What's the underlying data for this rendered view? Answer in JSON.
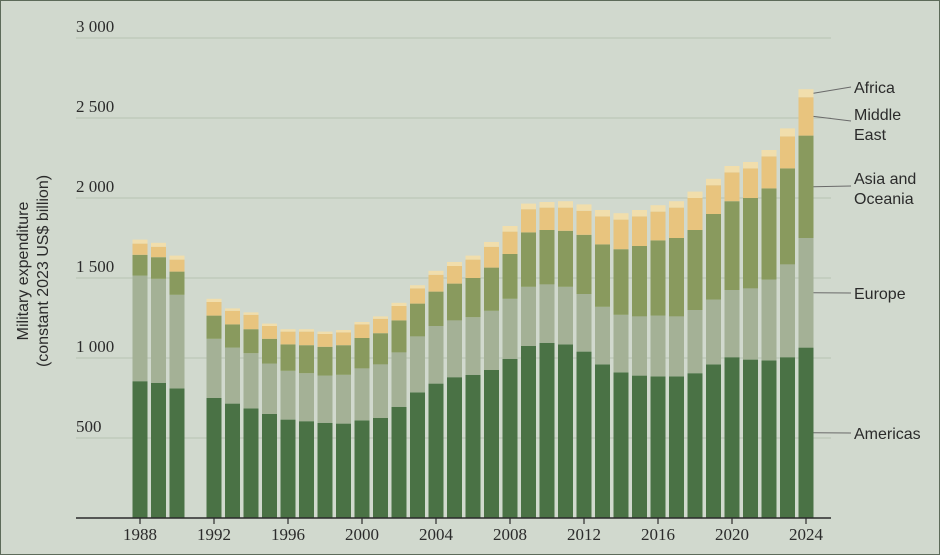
{
  "chart_data": {
    "type": "bar",
    "stacked": true,
    "title": "",
    "ylabel_line1": "Military expenditure",
    "ylabel_line2": "(constant 2023 US$ billion)",
    "ylim": [
      0,
      3000
    ],
    "y_ticks": [
      {
        "value": 500,
        "label": "500"
      },
      {
        "value": 1000,
        "label": "1 000"
      },
      {
        "value": 1500,
        "label": "1 500"
      },
      {
        "value": 2000,
        "label": "2 000"
      },
      {
        "value": 2500,
        "label": "2 500"
      },
      {
        "value": 3000,
        "label": "3 000"
      }
    ],
    "x_ticks": [
      "1988",
      "1992",
      "1996",
      "2000",
      "2004",
      "2008",
      "2012",
      "2016",
      "2020",
      "2024"
    ],
    "grid": true,
    "categories": [
      "1988",
      "1989",
      "1990",
      "1991",
      "1992",
      "1993",
      "1994",
      "1995",
      "1996",
      "1997",
      "1998",
      "1999",
      "2000",
      "2001",
      "2002",
      "2003",
      "2004",
      "2005",
      "2006",
      "2007",
      "2008",
      "2009",
      "2010",
      "2011",
      "2012",
      "2013",
      "2014",
      "2015",
      "2016",
      "2017",
      "2018",
      "2019",
      "2020",
      "2021",
      "2022",
      "2023",
      "2024"
    ],
    "series": [
      {
        "name": "Americas",
        "color": "#4a7245",
        "values": [
          855,
          845,
          810,
          null,
          750,
          715,
          685,
          650,
          615,
          605,
          595,
          590,
          610,
          625,
          695,
          785,
          840,
          880,
          895,
          925,
          995,
          1075,
          1095,
          1085,
          1040,
          960,
          910,
          890,
          885,
          885,
          905,
          960,
          1005,
          990,
          985,
          1005,
          1065
        ]
      },
      {
        "name": "Europe",
        "color": "#a4b196",
        "values": [
          660,
          650,
          585,
          null,
          370,
          350,
          345,
          315,
          305,
          300,
          295,
          305,
          325,
          335,
          340,
          350,
          360,
          355,
          360,
          370,
          375,
          370,
          365,
          360,
          360,
          360,
          360,
          370,
          380,
          375,
          395,
          405,
          420,
          445,
          505,
          580,
          685
        ]
      },
      {
        "name": "Asia and Oceania",
        "color": "#899a5e",
        "values": [
          130,
          135,
          145,
          null,
          145,
          145,
          150,
          155,
          165,
          175,
          180,
          185,
          190,
          195,
          200,
          205,
          215,
          230,
          245,
          270,
          280,
          340,
          340,
          350,
          370,
          390,
          410,
          440,
          470,
          490,
          500,
          535,
          555,
          565,
          570,
          600,
          640
        ]
      },
      {
        "name": "Middle East",
        "color": "#e8c47e",
        "values": [
          70,
          65,
          75,
          null,
          85,
          85,
          90,
          80,
          80,
          85,
          80,
          80,
          85,
          90,
          90,
          95,
          105,
          110,
          115,
          130,
          140,
          145,
          140,
          145,
          150,
          175,
          185,
          185,
          180,
          190,
          200,
          180,
          180,
          185,
          200,
          200,
          240
        ]
      },
      {
        "name": "Africa",
        "color": "#f1deac",
        "values": [
          25,
          25,
          25,
          null,
          20,
          15,
          15,
          15,
          15,
          15,
          15,
          15,
          15,
          15,
          20,
          20,
          25,
          25,
          25,
          30,
          35,
          35,
          35,
          40,
          40,
          40,
          40,
          40,
          40,
          40,
          40,
          40,
          40,
          40,
          40,
          50,
          50
        ]
      }
    ],
    "legend": {
      "placement": "right",
      "entries": [
        {
          "lines": [
            "Africa"
          ]
        },
        {
          "lines": [
            "Middle",
            "East"
          ]
        },
        {
          "lines": [
            "Asia and",
            "Oceania"
          ]
        },
        {
          "lines": [
            "Europe"
          ]
        },
        {
          "lines": [
            "Americas"
          ]
        }
      ]
    }
  }
}
